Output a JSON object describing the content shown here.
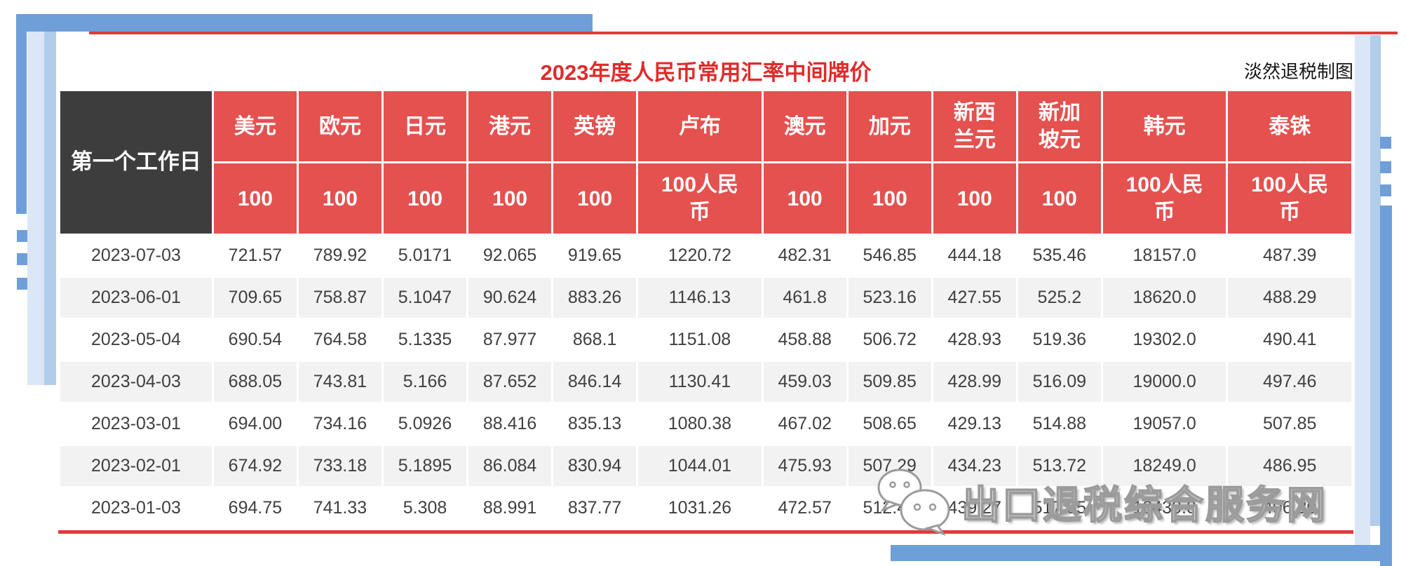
{
  "page": {
    "credit": "淡然退税制图",
    "watermark": "出口退税综合服务网"
  },
  "colors": {
    "header_red": "#e4514f",
    "title_red": "#e02b2b",
    "dark_header": "#3d3d3d",
    "stripe_gray": "#f2f2f2",
    "rule_red": "#e23a3a",
    "accent_blue": "#6f9fd9",
    "pale_blue": "#dbe7f6",
    "mid_blue": "#b2cdea"
  },
  "chart_data": {
    "type": "table",
    "title": "2023年度人民币常用汇率中间牌价",
    "row_header": "第一个工作日",
    "columns": [
      {
        "name": "美元",
        "unit": "100"
      },
      {
        "name": "欧元",
        "unit": "100"
      },
      {
        "name": "日元",
        "unit": "100"
      },
      {
        "name": "港元",
        "unit": "100"
      },
      {
        "name": "英镑",
        "unit": "100"
      },
      {
        "name": "卢布",
        "unit": "100人民币"
      },
      {
        "name": "澳元",
        "unit": "100"
      },
      {
        "name": "加元",
        "unit": "100"
      },
      {
        "name": "新西兰元",
        "unit": "100"
      },
      {
        "name": "新加坡元",
        "unit": "100"
      },
      {
        "name": "韩元",
        "unit": "100人民币"
      },
      {
        "name": "泰铢",
        "unit": "100人民币"
      }
    ],
    "rows": [
      {
        "date": "2023-07-03",
        "values": [
          "721.57",
          "789.92",
          "5.0171",
          "92.065",
          "919.65",
          "1220.72",
          "482.31",
          "546.85",
          "444.18",
          "535.46",
          "18157.0",
          "487.39"
        ]
      },
      {
        "date": "2023-06-01",
        "values": [
          "709.65",
          "758.87",
          "5.1047",
          "90.624",
          "883.26",
          "1146.13",
          "461.8",
          "523.16",
          "427.55",
          "525.2",
          "18620.0",
          "488.29"
        ]
      },
      {
        "date": "2023-05-04",
        "values": [
          "690.54",
          "764.58",
          "5.1335",
          "87.977",
          "868.1",
          "1151.08",
          "458.88",
          "506.72",
          "428.93",
          "519.36",
          "19302.0",
          "490.41"
        ]
      },
      {
        "date": "2023-04-03",
        "values": [
          "688.05",
          "743.81",
          "5.166",
          "87.652",
          "846.14",
          "1130.41",
          "459.03",
          "509.85",
          "428.99",
          "516.09",
          "19000.0",
          "497.46"
        ]
      },
      {
        "date": "2023-03-01",
        "values": [
          "694.00",
          "734.16",
          "5.0926",
          "88.416",
          "835.13",
          "1080.38",
          "467.02",
          "508.65",
          "429.13",
          "514.88",
          "19057.0",
          "507.85"
        ]
      },
      {
        "date": "2023-02-01",
        "values": [
          "674.92",
          "733.18",
          "5.1895",
          "86.084",
          "830.94",
          "1044.01",
          "475.93",
          "507.29",
          "434.23",
          "513.72",
          "18249.0",
          "486.95"
        ]
      },
      {
        "date": "2023-01-03",
        "values": [
          "694.75",
          "741.33",
          "5.308",
          "88.991",
          "837.77",
          "1031.26",
          "472.57",
          "512.44",
          "439.27",
          "517.85",
          "18430.0",
          "496.30"
        ]
      }
    ]
  }
}
